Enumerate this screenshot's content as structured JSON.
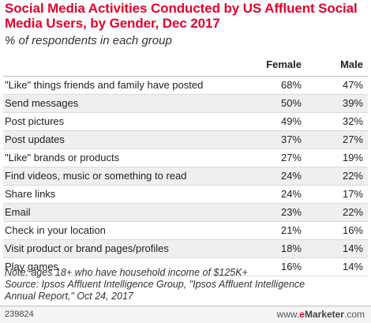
{
  "chart_data": {
    "type": "table",
    "title": "Social Media Activities Conducted by US Affluent Social Media Users, by Gender, Dec 2017",
    "subtitle": "% of respondents in each group",
    "columns": [
      "Female",
      "Male"
    ],
    "rows": [
      {
        "label": "\"Like\" things friends and family have posted",
        "female": "68%",
        "male": "47%"
      },
      {
        "label": "Send messages",
        "female": "50%",
        "male": "39%"
      },
      {
        "label": "Post pictures",
        "female": "49%",
        "male": "32%"
      },
      {
        "label": "Post updates",
        "female": "37%",
        "male": "27%"
      },
      {
        "label": "\"Like\" brands or products",
        "female": "27%",
        "male": "19%"
      },
      {
        "label": "Find videos, music or something to read",
        "female": "24%",
        "male": "22%"
      },
      {
        "label": "Share links",
        "female": "24%",
        "male": "17%"
      },
      {
        "label": "Email",
        "female": "23%",
        "male": "22%"
      },
      {
        "label": "Check in your location",
        "female": "21%",
        "male": "16%"
      },
      {
        "label": "Visit product or brand pages/profiles",
        "female": "18%",
        "male": "14%"
      },
      {
        "label": "Play games",
        "female": "16%",
        "male": "14%"
      }
    ],
    "note_lines": [
      "Note: ages 18+ who have household income of $125K+",
      "Source: Ipsos Affluent Intelligence Group, \"Ipsos Affluent Intelligence",
      "Annual Report,\" Oct 24, 2017"
    ]
  },
  "footer": {
    "id": "239824",
    "brand_prefix": "www.",
    "brand_e": "e",
    "brand_name": "Marketer",
    "brand_suffix": ".com"
  },
  "colors": {
    "accent": "#e4002b",
    "row_shade": "#efefef"
  }
}
